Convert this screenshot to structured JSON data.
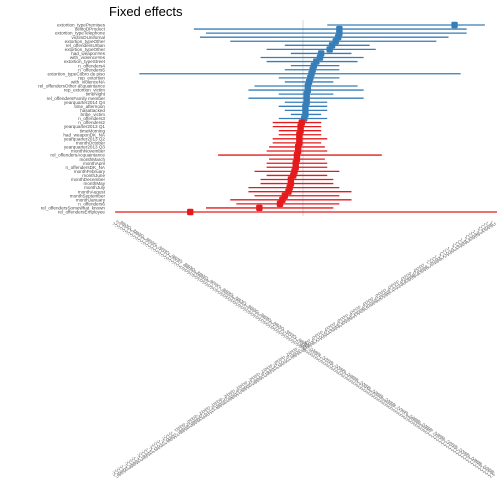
{
  "chart_data": {
    "type": "forest",
    "title": "Fixed effects",
    "xlabel": "",
    "ylabel": "",
    "grid": false,
    "xlim": [
      -1.6,
      1.6
    ],
    "zero_line": 0,
    "colors": {
      "positive": "#377eb8",
      "negative": "#e41a1c",
      "zero_line": "#bdbdbd",
      "axis_text": "#595959"
    },
    "terms": [
      "extortion_typePremises",
      "delitoDProduct",
      "extortion_typeTelephone",
      "victimDUnifornal",
      "extortion_typeOther",
      "rel_offendersUrban",
      "extortion_typeOther",
      "had_weaponYes",
      "with_violenceYes",
      "extortion_typeStreet",
      "n_offenders4",
      "n_offenders5",
      "extortion_typeCobro de piso",
      "rep_extortion",
      "with_violenceNA",
      "rel_offendersOther acquaintance",
      "rep_extortion_victim",
      "timeNight",
      "rel_offendersFamily member",
      "yearquarter2014 Q4",
      "time_afternoon",
      "hasattacked",
      "bribe_victim",
      "n_offenders3",
      "n_offenders2",
      "yearquarter2013 Q1",
      "timeMorning",
      "had_weaponDK_NA",
      "yearquarter2013 Q2",
      "monthOctober",
      "yearquarter2013 Q3",
      "monthNovember",
      "rel_offendersAcquaintance",
      "monthMarch",
      "monthApril",
      "n_offendersDK_NA",
      "monthFebruary",
      "monthJune",
      "monthDecember",
      "monthMay",
      "monthJuly",
      "monthAugust",
      "monthSeptember",
      "monthJanuary",
      "n_offenders6",
      "rel_offendersSomewhat_known",
      "rel_offendersEmployee"
    ],
    "series": [
      {
        "estimates": [
          1.25,
          0.3,
          0.3,
          0.29,
          0.27,
          0.24,
          0.22,
          0.15,
          0.14,
          0.11,
          0.09,
          0.08,
          0.07,
          0.06,
          0.05,
          0.04,
          0.04,
          0.03,
          0.03,
          0.03,
          0.02,
          0.02,
          0.02,
          0.01,
          -0.01,
          -0.02,
          -0.02,
          -0.03,
          -0.03,
          -0.03,
          -0.04,
          -0.04,
          -0.05,
          -0.05,
          -0.06,
          -0.06,
          -0.07,
          -0.08,
          -0.1,
          -0.1,
          -0.11,
          -0.12,
          -0.15,
          -0.17,
          -0.19,
          -0.36,
          -0.93
        ],
        "lower": [
          0.2,
          -0.9,
          -0.8,
          -0.85,
          -0.6,
          -0.15,
          -0.3,
          -0.1,
          -0.35,
          -0.3,
          -0.1,
          -0.15,
          -1.35,
          -0.2,
          -0.15,
          -0.4,
          -0.45,
          -0.2,
          -0.45,
          -0.15,
          -0.2,
          -0.15,
          -0.1,
          -0.2,
          -0.25,
          -0.25,
          -0.2,
          -0.2,
          -0.25,
          -0.25,
          -0.28,
          -0.3,
          -0.7,
          -0.28,
          -0.3,
          -0.3,
          -0.4,
          -0.3,
          -0.35,
          -0.35,
          -0.45,
          -0.45,
          -0.4,
          -0.6,
          -0.55,
          -0.8,
          -1.55
        ],
        "upper": [
          1.5,
          1.35,
          1.35,
          1.2,
          1.1,
          0.55,
          0.6,
          0.4,
          0.5,
          0.45,
          0.3,
          0.3,
          1.3,
          0.3,
          0.25,
          0.45,
          0.5,
          0.25,
          0.5,
          0.2,
          0.2,
          0.2,
          0.15,
          0.2,
          0.15,
          0.15,
          0.15,
          0.15,
          0.2,
          0.15,
          0.18,
          0.2,
          0.65,
          0.18,
          0.2,
          0.2,
          0.3,
          0.2,
          0.25,
          0.25,
          0.3,
          0.4,
          0.3,
          0.4,
          0.3,
          0.25,
          1.65
        ]
      }
    ],
    "xticks": [
      -1.5,
      -1.48,
      -1.46,
      -1.44,
      -1.42,
      -1.4,
      -1.38,
      -1.36,
      -1.34,
      -1.32,
      -1.3,
      -1.28,
      -1.26,
      -1.24,
      -1.22,
      -1.2,
      -1.18,
      -1.16,
      -1.14,
      -1.12,
      -1.1,
      -1.08,
      -1.06,
      -1.04,
      -1.02,
      -1.0,
      -0.98,
      -0.96,
      -0.94,
      -0.92,
      -0.9,
      -0.88,
      -0.86,
      -0.84,
      -0.82,
      -0.8,
      -0.78,
      -0.76,
      -0.74,
      -0.72,
      -0.7,
      -0.68,
      -0.66,
      -0.64,
      -0.62,
      -0.6,
      -0.58,
      -0.56,
      -0.54,
      -0.52,
      -0.5,
      -0.48,
      -0.46,
      -0.44,
      -0.42,
      -0.4,
      -0.38,
      -0.36,
      -0.34,
      -0.32,
      -0.3,
      -0.28,
      -0.26,
      -0.24,
      -0.22,
      -0.2,
      -0.18,
      -0.16,
      -0.14,
      -0.12,
      -0.1,
      -0.08,
      -0.06,
      -0.04,
      -0.02,
      0.0,
      0.02,
      0.04,
      0.06,
      0.08,
      0.1,
      0.12,
      0.14,
      0.16,
      0.18,
      0.2,
      0.22,
      0.24,
      0.26,
      0.28,
      0.3,
      0.32,
      0.34,
      0.36,
      0.38,
      0.4,
      0.42,
      0.44,
      0.46,
      0.48,
      0.5,
      0.52,
      0.54,
      0.56,
      0.58,
      0.6,
      0.62,
      0.64,
      0.66,
      0.68,
      0.7,
      0.72,
      0.74,
      0.76,
      0.78,
      0.8,
      0.82,
      0.84,
      0.86,
      0.88,
      0.9,
      0.92,
      0.94,
      0.96,
      0.98,
      1.0,
      1.02,
      1.04,
      1.06,
      1.08,
      1.1,
      1.12,
      1.14,
      1.16,
      1.18,
      1.2,
      1.22,
      1.24,
      1.26,
      1.28,
      1.3,
      1.32,
      1.34,
      1.36,
      1.38,
      1.4,
      1.42,
      1.44,
      1.46,
      1.48,
      1.5
    ]
  }
}
